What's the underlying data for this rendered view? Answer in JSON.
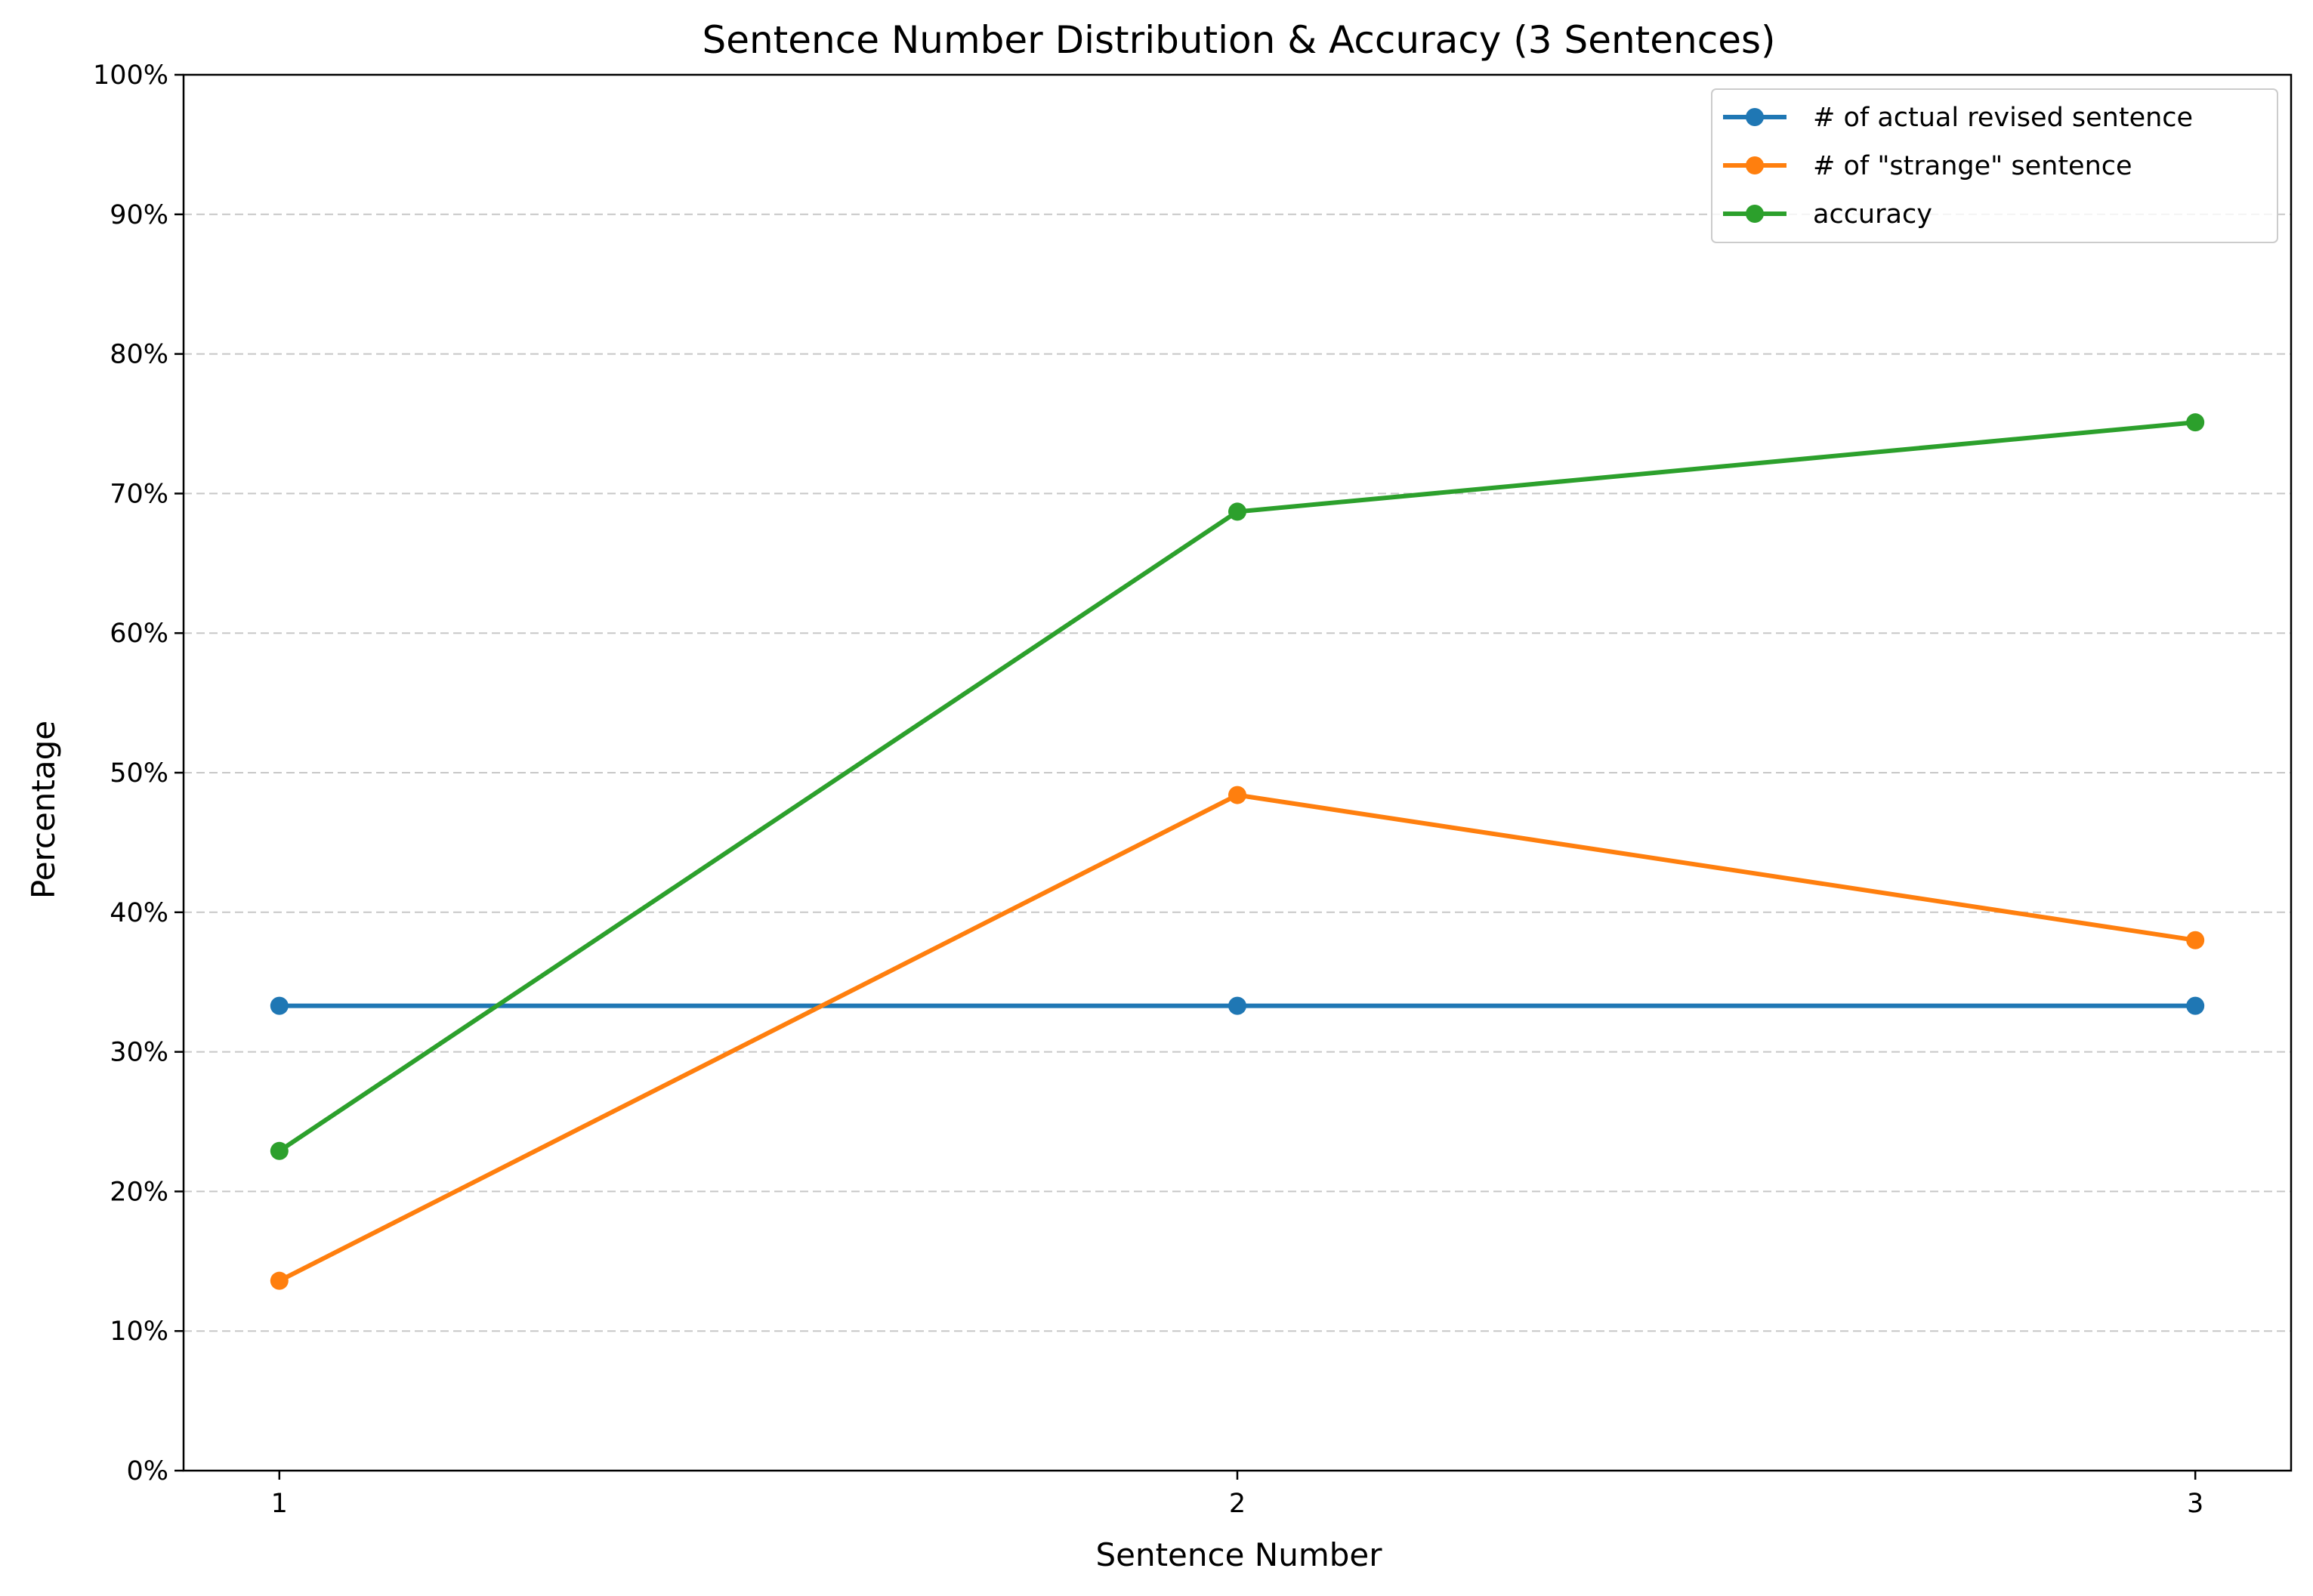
{
  "chart_data": {
    "type": "line",
    "title": "Sentence Number Distribution & Accuracy (3 Sentences)",
    "xlabel": "Sentence Number",
    "ylabel": "Percentage",
    "x": [
      1,
      2,
      3
    ],
    "x_tick_labels": [
      "1",
      "2",
      "3"
    ],
    "ylim": [
      0,
      100
    ],
    "y_ticks": [
      0,
      10,
      20,
      30,
      40,
      50,
      60,
      70,
      80,
      90,
      100
    ],
    "y_tick_labels": [
      "0%",
      "10%",
      "20%",
      "30%",
      "40%",
      "50%",
      "60%",
      "70%",
      "80%",
      "90%",
      "100%"
    ],
    "grid": "horizontal dashed",
    "legend_position": "top-right",
    "series": [
      {
        "name": "# of actual revised sentence",
        "color": "#1f77b4",
        "values": [
          33.3,
          33.3,
          33.3
        ]
      },
      {
        "name": "# of \"strange\" sentence",
        "color": "#ff7f0e",
        "values": [
          13.6,
          48.4,
          38.0
        ]
      },
      {
        "name": "accuracy",
        "color": "#2ca02c",
        "values": [
          22.9,
          68.7,
          75.1
        ]
      }
    ]
  }
}
